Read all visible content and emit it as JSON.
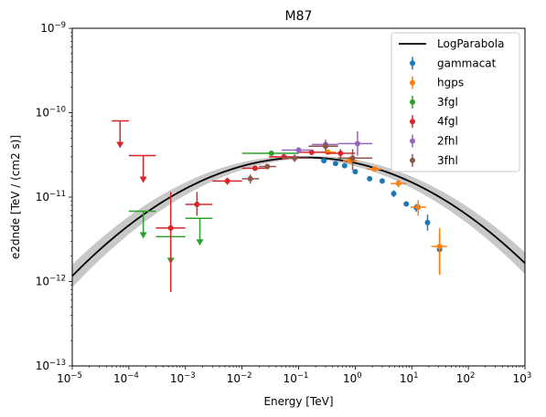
{
  "chart_data": {
    "type": "scatter",
    "title": "M87",
    "xlabel": "Energy [TeV]",
    "ylabel": "e2dnde [TeV / (cm2 s)]",
    "xscale": "log",
    "yscale": "log",
    "xlim": [
      1e-05,
      1000
    ],
    "ylim": [
      1e-13,
      1e-09
    ],
    "x_ticks": [
      {
        "value": 1e-05,
        "label_base": "10",
        "label_exp": "−5"
      },
      {
        "value": 0.0001,
        "label_base": "10",
        "label_exp": "−4"
      },
      {
        "value": 0.001,
        "label_base": "10",
        "label_exp": "−3"
      },
      {
        "value": 0.01,
        "label_base": "10",
        "label_exp": "−2"
      },
      {
        "value": 0.1,
        "label_base": "10",
        "label_exp": "−1"
      },
      {
        "value": 1,
        "label_base": "10",
        "label_exp": "0"
      },
      {
        "value": 10,
        "label_base": "10",
        "label_exp": "1"
      },
      {
        "value": 100,
        "label_base": "10",
        "label_exp": "2"
      },
      {
        "value": 1000,
        "label_base": "10",
        "label_exp": "3"
      }
    ],
    "y_ticks": [
      {
        "value": 1e-13,
        "label_base": "10",
        "label_exp": "−13"
      },
      {
        "value": 1e-12,
        "label_base": "10",
        "label_exp": "−12"
      },
      {
        "value": 1e-11,
        "label_base": "10",
        "label_exp": "−11"
      },
      {
        "value": 1e-10,
        "label_base": "10",
        "label_exp": "−10"
      },
      {
        "value": 1e-09,
        "label_base": "10",
        "label_exp": "−9"
      }
    ],
    "legend_position": "top-right",
    "model": {
      "name": "LogParabola",
      "color": "#000000",
      "band_color": "#c8c8c8",
      "peak_energy": 0.13,
      "peak_value": 2.95e-11,
      "curvature_beta": 0.083,
      "band_sigma_dex_min": 0.012,
      "band_sigma_dex_per_decade": 0.03
    },
    "series": [
      {
        "name": "gammacat",
        "color": "#1f77b4",
        "points": [
          {
            "x": 0.28,
            "y": 2.7e-11,
            "yerr": [
              1e-12,
              1e-12
            ]
          },
          {
            "x": 0.45,
            "y": 2.5e-11,
            "yerr": [
              1e-12,
              1e-12
            ]
          },
          {
            "x": 0.65,
            "y": 2.35e-11,
            "yerr": [
              1e-12,
              1e-12
            ]
          },
          {
            "x": 1.0,
            "y": 2e-11,
            "yerr": [
              1e-12,
              1e-12
            ]
          },
          {
            "x": 1.8,
            "y": 1.65e-11,
            "yerr": [
              1e-12,
              1e-12
            ]
          },
          {
            "x": 3.0,
            "y": 1.55e-11,
            "yerr": [
              1e-12,
              1e-12
            ]
          },
          {
            "x": 4.8,
            "y": 1.1e-11,
            "yerr": [
              1e-12,
              1e-12
            ]
          },
          {
            "x": 8.0,
            "y": 8.3e-12,
            "yerr": [
              6e-13,
              6e-13
            ]
          },
          {
            "x": 12.0,
            "y": 7.5e-12,
            "yerr": [
              8e-13,
              8e-13
            ]
          },
          {
            "x": 19.0,
            "y": 5e-12,
            "yerr": [
              1e-12,
              1.2e-12
            ]
          },
          {
            "x": 31.0,
            "y": 2.4e-12,
            "yerr": [
              1.2e-12,
              1.2e-12
            ]
          }
        ]
      },
      {
        "name": "hgps",
        "color": "#ff7f0e",
        "points": [
          {
            "x": 0.33,
            "y": 3.4e-11,
            "xerr": [
              0.25,
              0.45
            ],
            "yerr": [
              2e-12,
              2e-12
            ]
          },
          {
            "x": 0.8,
            "y": 2.7e-11,
            "xerr": [
              0.6,
              1.1
            ],
            "yerr": [
              2e-12,
              3e-12
            ]
          },
          {
            "x": 2.2,
            "y": 2.15e-11,
            "xerr": [
              1.6,
              3.0
            ],
            "yerr": [
              1.5e-12,
              1.5e-12
            ]
          },
          {
            "x": 5.8,
            "y": 1.45e-11,
            "xerr": [
              4.2,
              8.0
            ],
            "yerr": [
              1.5e-12,
              1.5e-12
            ]
          },
          {
            "x": 13.0,
            "y": 7.6e-12,
            "xerr": [
              9.5,
              18.0
            ],
            "yerr": [
              1.6e-12,
              1.6e-12
            ]
          },
          {
            "x": 31.0,
            "y": 2.6e-12,
            "xerr": [
              22.0,
              42.0
            ],
            "yerr": [
              1.4e-12,
              1.7e-12
            ]
          }
        ]
      },
      {
        "name": "3fgl",
        "color": "#2ca02c",
        "points": [
          {
            "x": 0.00018,
            "y": 6.8e-12,
            "xerr": [
              0.0001,
              0.0003
            ],
            "ul": true
          },
          {
            "x": 0.00055,
            "y": 3.4e-12,
            "xerr": [
              0.0003,
              0.001
            ],
            "ul": true
          },
          {
            "x": 0.0018,
            "y": 5.6e-12,
            "xerr": [
              0.001,
              0.003
            ],
            "ul": true
          },
          {
            "x": 0.033,
            "y": 3.3e-11,
            "xerr": [
              0.01,
              0.1
            ],
            "yerr": [
              1.5e-12,
              1.5e-12
            ]
          }
        ]
      },
      {
        "name": "4fgl",
        "color": "#d62728",
        "points": [
          {
            "x": 7e-05,
            "y": 8e-11,
            "xerr": [
              5e-05,
              0.0001
            ],
            "ul": true
          },
          {
            "x": 0.00018,
            "y": 3.1e-11,
            "xerr": [
              0.0001,
              0.0003
            ],
            "ul": true
          },
          {
            "x": 0.00055,
            "y": 4.3e-12,
            "xerr": [
              0.0003,
              0.001
            ],
            "yerr": [
              3.55e-12,
              7.2e-12
            ]
          },
          {
            "x": 0.0016,
            "y": 8.2e-12,
            "xerr": [
              0.001,
              0.003
            ],
            "yerr": [
              2.2e-12,
              3.3e-12
            ]
          },
          {
            "x": 0.0055,
            "y": 1.55e-11,
            "xerr": [
              0.003,
              0.01
            ],
            "yerr": [
              1.5e-12,
              1.5e-12
            ]
          },
          {
            "x": 0.017,
            "y": 2.2e-11,
            "xerr": [
              0.01,
              0.03
            ],
            "yerr": [
              1e-12,
              1e-12
            ]
          },
          {
            "x": 0.055,
            "y": 3e-11,
            "xerr": [
              0.03,
              0.1
            ],
            "yerr": [
              1.5e-12,
              1.5e-12
            ]
          },
          {
            "x": 0.17,
            "y": 3.4e-11,
            "xerr": [
              0.1,
              0.3
            ],
            "yerr": [
              2.5e-12,
              2.5e-12
            ]
          },
          {
            "x": 0.55,
            "y": 3.3e-11,
            "xerr": [
              0.3,
              1.0
            ],
            "yerr": [
              4e-12,
              4e-12
            ]
          }
        ]
      },
      {
        "name": "2fhl",
        "color": "#9467bd",
        "points": [
          {
            "x": 0.1,
            "y": 3.6e-11,
            "xerr": [
              0.05,
              0.17
            ],
            "yerr": [
              3e-12,
              3e-12
            ]
          },
          {
            "x": 0.3,
            "y": 4.2e-11,
            "xerr": [
              0.17,
              0.5
            ],
            "yerr": [
              6e-12,
              6e-12
            ]
          },
          {
            "x": 1.1,
            "y": 4.3e-11,
            "xerr": [
              0.5,
              2.0
            ],
            "yerr": [
              1.2e-11,
              1.7e-11
            ]
          }
        ]
      },
      {
        "name": "3fhl",
        "color": "#8c564b",
        "points": [
          {
            "x": 0.014,
            "y": 1.65e-11,
            "xerr": [
              0.01,
              0.02
            ],
            "yerr": [
              2e-12,
              2e-12
            ]
          },
          {
            "x": 0.028,
            "y": 2.3e-11,
            "xerr": [
              0.02,
              0.04
            ],
            "yerr": [
              1.5e-12,
              1.5e-12
            ]
          },
          {
            "x": 0.085,
            "y": 2.9e-11,
            "xerr": [
              0.05,
              0.15
            ],
            "yerr": [
              3e-12,
              3e-12
            ]
          },
          {
            "x": 0.3,
            "y": 4e-11,
            "xerr": [
              0.15,
              0.5
            ],
            "yerr": [
              5e-12,
              5e-12
            ]
          },
          {
            "x": 0.9,
            "y": 2.9e-11,
            "xerr": [
              0.5,
              2.0
            ],
            "yerr": [
              8e-12,
              8e-12
            ]
          }
        ]
      }
    ]
  }
}
